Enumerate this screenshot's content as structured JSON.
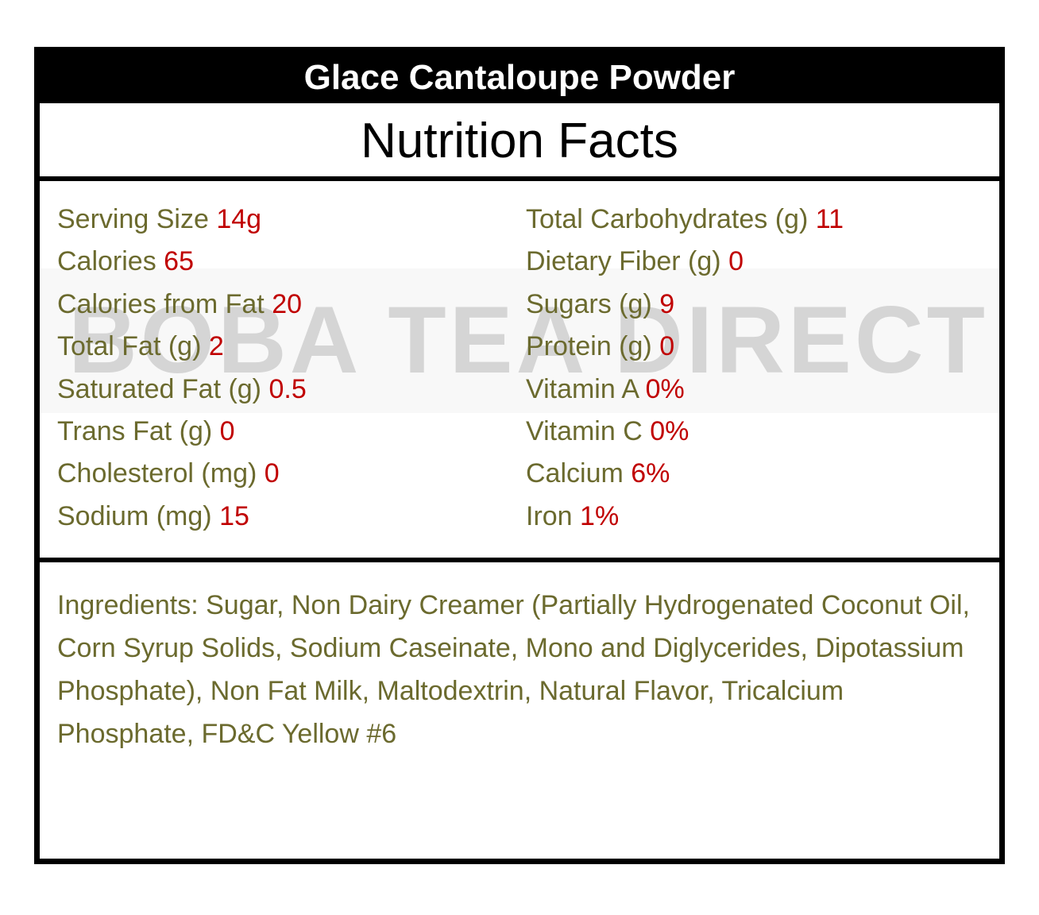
{
  "product_name": "Glace Cantaloupe Powder",
  "title": "Nutrition Facts",
  "watermark": "BOBA TEA DIRECT",
  "colors": {
    "label": "#6b6a2e",
    "value": "#c00000"
  },
  "left_column": [
    {
      "label": "Serving Size",
      "value": "14g"
    },
    {
      "label": "Calories",
      "value": "65"
    },
    {
      "label": "Calories from Fat",
      "value": "20"
    },
    {
      "label": "Total Fat (g)",
      "value": "2"
    },
    {
      "label": "Saturated Fat (g)",
      "value": "0.5"
    },
    {
      "label": "Trans Fat (g)",
      "value": "0"
    },
    {
      "label": "Cholesterol (mg)",
      "value": "0"
    },
    {
      "label": "Sodium (mg)",
      "value": "15"
    }
  ],
  "right_column": [
    {
      "label": "Total Carbohydrates (g)",
      "value": "11"
    },
    {
      "label": "Dietary Fiber (g)",
      "value": "0"
    },
    {
      "label": "Sugars (g)",
      "value": "9"
    },
    {
      "label": "Protein (g)",
      "value": "0"
    },
    {
      "label": "Vitamin A",
      "value": "0%"
    },
    {
      "label": "Vitamin C",
      "value": "0%"
    },
    {
      "label": "Calcium",
      "value": "6%"
    },
    {
      "label": "Iron",
      "value": "1%"
    }
  ],
  "ingredients": "Ingredients: Sugar, Non Dairy Creamer (Partially Hydrogenated Coconut Oil, Corn Syrup Solids, Sodium Caseinate, Mono and Diglycerides, Dipotassium Phosphate), Non Fat Milk, Maltodextrin, Natural Flavor, Tricalcium Phosphate, FD&C Yellow #6"
}
